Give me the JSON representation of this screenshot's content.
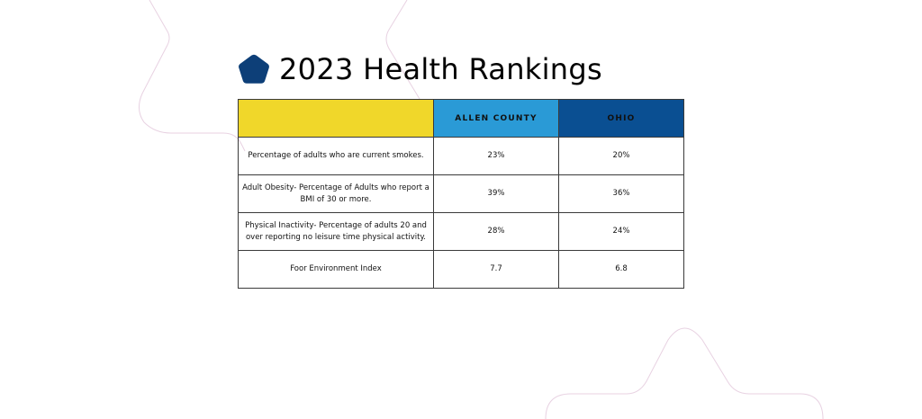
{
  "page": {
    "title": "2023 Health Rankings"
  },
  "colors": {
    "header_blank": "#f0d72a",
    "header_county": "#2a9ad6",
    "header_state": "#0a4f92",
    "title_icon": "#0d3f78",
    "decorative_lines": "#e8d2e2"
  },
  "icons": {
    "title_icon": "pentagon-icon"
  },
  "table": {
    "headers": [
      "",
      "ALLEN COUNTY",
      "OHIO"
    ],
    "rows": [
      {
        "metric": "Percentage of adults who are current smokes.",
        "county": "23%",
        "state": "20%"
      },
      {
        "metric": "Adult Obesity- Percentage of Adults who report a BMI of 30 or more.",
        "county": "39%",
        "state": "36%"
      },
      {
        "metric": "Physical Inactivity- Percentage of adults 20 and over reporting no leisure time physical activity.",
        "county": "28%",
        "state": "24%"
      },
      {
        "metric": "Foor Environment Index",
        "county": "7.7",
        "state": "6.8"
      }
    ]
  }
}
